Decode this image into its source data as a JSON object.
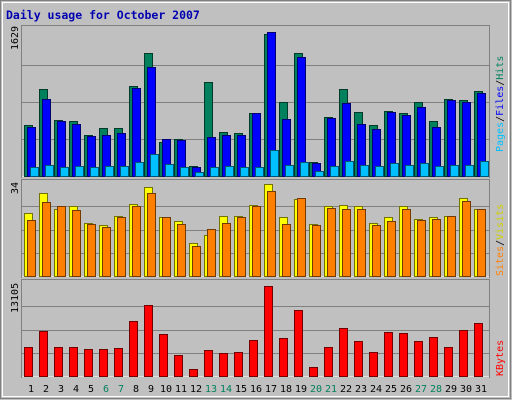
{
  "title": "Daily usage for October 2007",
  "colors": {
    "background": "#c0c0c0",
    "frame": "#808080",
    "title": "#0000b0",
    "hits": "#00805c",
    "files": "#0000ff",
    "pages": "#00c0ff",
    "visits": "#ffff00",
    "sites": "#ff8000",
    "kbytes": "#ff0000",
    "weekend_day": "#00805c",
    "weekday": "#000000",
    "grid": "#808080"
  },
  "days": [
    "1",
    "2",
    "3",
    "4",
    "5",
    "6",
    "7",
    "8",
    "9",
    "10",
    "11",
    "12",
    "13",
    "14",
    "15",
    "16",
    "17",
    "18",
    "19",
    "20",
    "21",
    "22",
    "23",
    "24",
    "25",
    "26",
    "27",
    "28",
    "29",
    "30",
    "31"
  ],
  "weekend_days": [
    "6",
    "7",
    "13",
    "14",
    "20",
    "21",
    "27",
    "28"
  ],
  "labels": {
    "hits": "Hits",
    "files": "Files",
    "pages": "Pages",
    "visits": "Visits",
    "sites": "Sites",
    "kbytes": "KBytes",
    "sep": "/"
  },
  "chart_data": [
    {
      "type": "bar",
      "panel": "hits-files-pages",
      "ymax_label": "1629",
      "ylim": [
        0,
        1629
      ],
      "categories": [
        "1",
        "2",
        "3",
        "4",
        "5",
        "6",
        "7",
        "8",
        "9",
        "10",
        "11",
        "12",
        "13",
        "14",
        "15",
        "16",
        "17",
        "18",
        "19",
        "20",
        "21",
        "22",
        "23",
        "24",
        "25",
        "26",
        "27",
        "28",
        "29",
        "30",
        "31"
      ],
      "series": [
        {
          "name": "Hits",
          "values": [
            560,
            955,
            615,
            600,
            450,
            525,
            525,
            995,
            1350,
            370,
            410,
            110,
            1030,
            480,
            475,
            695,
            1565,
            810,
            1350,
            155,
            645,
            955,
            705,
            565,
            715,
            690,
            815,
            605,
            845,
            835,
            940
          ]
        },
        {
          "name": "Files",
          "values": [
            535,
            850,
            600,
            575,
            440,
            450,
            470,
            965,
            1205,
            410,
            395,
            100,
            425,
            455,
            450,
            695,
            1585,
            625,
            1310,
            145,
            635,
            805,
            575,
            515,
            700,
            670,
            755,
            535,
            835,
            820,
            910
          ]
        },
        {
          "name": "Pages",
          "values": [
            100,
            125,
            95,
            115,
            100,
            105,
            115,
            150,
            240,
            130,
            100,
            40,
            100,
            115,
            95,
            100,
            290,
            125,
            150,
            50,
            110,
            160,
            120,
            115,
            145,
            120,
            140,
            115,
            125,
            125,
            170
          ]
        }
      ]
    },
    {
      "type": "bar",
      "panel": "visits-sites",
      "ymax_label": "34",
      "ylim": [
        0,
        34
      ],
      "categories": [
        "1",
        "2",
        "3",
        "4",
        "5",
        "6",
        "7",
        "8",
        "9",
        "10",
        "11",
        "12",
        "13",
        "14",
        "15",
        "16",
        "17",
        "18",
        "19",
        "20",
        "21",
        "22",
        "23",
        "24",
        "25",
        "26",
        "27",
        "28",
        "29",
        "30",
        "31"
      ],
      "series": [
        {
          "name": "Visits",
          "values": [
            23,
            30.5,
            24.5,
            25.5,
            19.5,
            18.5,
            22,
            26.5,
            32.5,
            21.5,
            20,
            12,
            15,
            22,
            22,
            26,
            33.5,
            21.5,
            28,
            19,
            25.5,
            26,
            25.5,
            19.5,
            21.5,
            25.5,
            21,
            21.5,
            22,
            28.5,
            24.5
          ]
        },
        {
          "name": "Sites",
          "values": [
            20.5,
            27,
            25.5,
            24,
            19,
            18,
            21.5,
            25.5,
            30.5,
            21.5,
            19,
            11,
            17,
            19.5,
            21.5,
            25.5,
            31,
            19,
            28.5,
            18.5,
            25,
            24.5,
            24.5,
            18.5,
            20,
            24.5,
            20.5,
            21,
            22,
            27.5,
            24.5
          ]
        }
      ]
    },
    {
      "type": "bar",
      "panel": "kbytes",
      "ymax_label": "13105",
      "ylim": [
        0,
        13105
      ],
      "categories": [
        "1",
        "2",
        "3",
        "4",
        "5",
        "6",
        "7",
        "8",
        "9",
        "10",
        "11",
        "12",
        "13",
        "14",
        "15",
        "16",
        "17",
        "18",
        "19",
        "20",
        "21",
        "22",
        "23",
        "24",
        "25",
        "26",
        "27",
        "28",
        "29",
        "30",
        "31"
      ],
      "series": [
        {
          "name": "KBytes",
          "values": [
            4100,
            6400,
            4100,
            4100,
            3750,
            3750,
            3950,
            7750,
            10050,
            5900,
            2900,
            1000,
            3650,
            3250,
            3350,
            5100,
            12750,
            5300,
            9350,
            1250,
            4100,
            6700,
            4950,
            3400,
            6200,
            6100,
            4950,
            5550,
            4100,
            6500,
            7400
          ]
        }
      ]
    }
  ]
}
